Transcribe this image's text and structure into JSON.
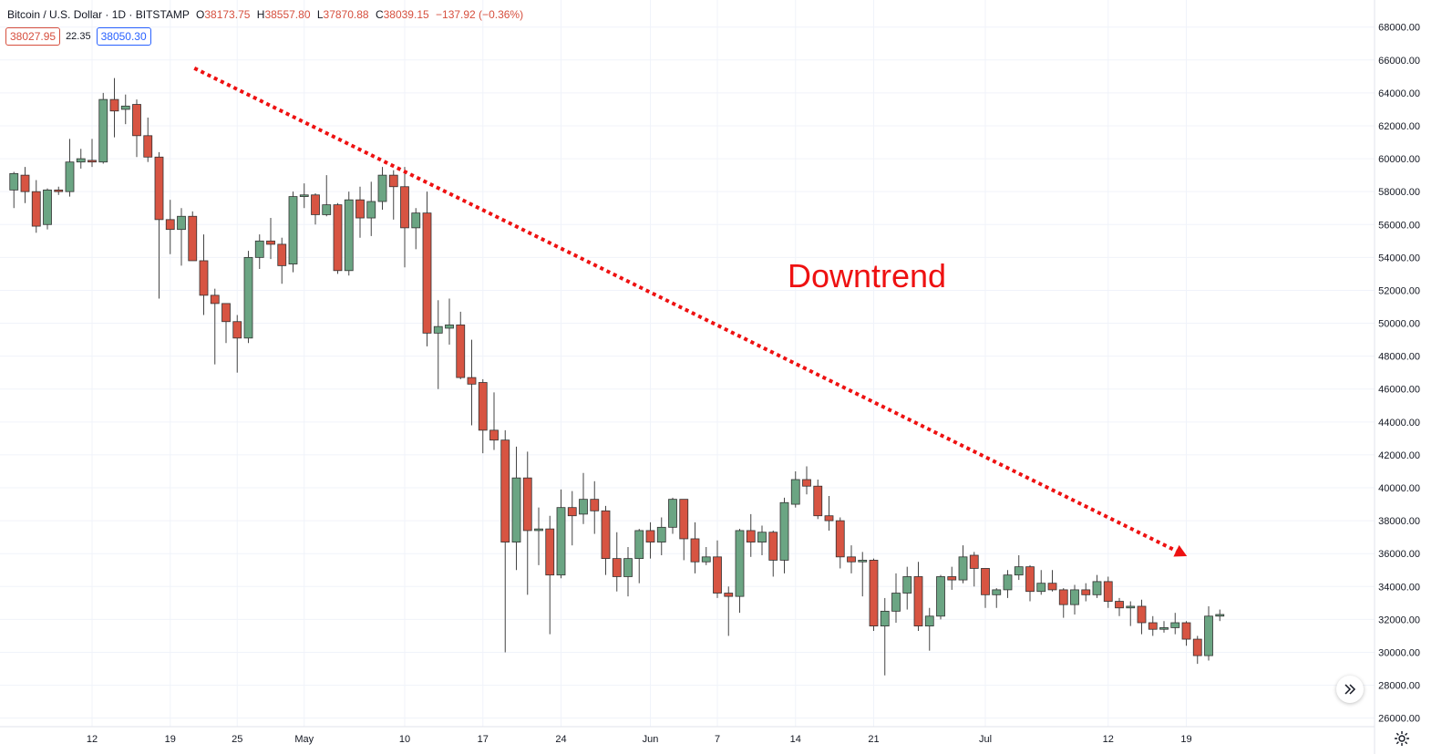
{
  "header": {
    "symbol": "Bitcoin / U.S. Dollar",
    "interval": "1D",
    "exchange": "BITSTAMP",
    "open_label": "O",
    "open": "38173.75",
    "high_label": "H",
    "high": "38557.80",
    "low_label": "L",
    "low": "37870.88",
    "close_label": "C",
    "close": "38039.15",
    "change": "−137.92 (−0.36%)",
    "bid": "38027.95",
    "spread": "22.35",
    "ask": "38050.30"
  },
  "colors": {
    "up": "#6ba583",
    "down": "#d75442",
    "grid": "#f0f3fa",
    "trendline": "#ee1111",
    "axis_text": "#131722"
  },
  "icons": [
    "double-chevron-right-icon",
    "gear-icon"
  ],
  "chart_data": {
    "type": "candlestick",
    "annotation": "Downtrend",
    "trendline": {
      "from": {
        "date": "2021-04-21",
        "price": 65500
      },
      "to": {
        "date": "2021-07-19",
        "price": 36000
      },
      "style": "dotted",
      "arrow": true
    },
    "y_ticks": [
      "26000.00",
      "28000.00",
      "30000.00",
      "32000.00",
      "34000.00",
      "36000.00",
      "38000.00",
      "40000.00",
      "42000.00",
      "44000.00",
      "46000.00",
      "48000.00",
      "50000.00",
      "52000.00",
      "54000.00",
      "56000.00",
      "58000.00",
      "60000.00",
      "62000.00",
      "64000.00",
      "66000.00",
      "68000.00"
    ],
    "ylim": [
      25000,
      69000
    ],
    "x_ticks": [
      {
        "label": "12",
        "date": "2021-04-12"
      },
      {
        "label": "19",
        "date": "2021-04-19"
      },
      {
        "label": "25",
        "date": "2021-04-25"
      },
      {
        "label": "May",
        "date": "2021-05-01"
      },
      {
        "label": "10",
        "date": "2021-05-10"
      },
      {
        "label": "17",
        "date": "2021-05-17"
      },
      {
        "label": "24",
        "date": "2021-05-24"
      },
      {
        "label": "Jun",
        "date": "2021-06-01"
      },
      {
        "label": "7",
        "date": "2021-06-07"
      },
      {
        "label": "14",
        "date": "2021-06-14"
      },
      {
        "label": "21",
        "date": "2021-06-21"
      },
      {
        "label": "Jul",
        "date": "2021-07-01"
      },
      {
        "label": "12",
        "date": "2021-07-12"
      },
      {
        "label": "19",
        "date": "2021-07-19"
      }
    ],
    "candles": [
      {
        "date": "2021-04-05",
        "o": 58100,
        "h": 59200,
        "l": 57000,
        "c": 59100
      },
      {
        "date": "2021-04-06",
        "o": 59000,
        "h": 59500,
        "l": 57300,
        "c": 58000
      },
      {
        "date": "2021-04-07",
        "o": 58000,
        "h": 58700,
        "l": 55500,
        "c": 55900
      },
      {
        "date": "2021-04-08",
        "o": 56000,
        "h": 58200,
        "l": 55700,
        "c": 58100
      },
      {
        "date": "2021-04-09",
        "o": 58100,
        "h": 58300,
        "l": 57800,
        "c": 58000
      },
      {
        "date": "2021-04-10",
        "o": 58000,
        "h": 61200,
        "l": 57700,
        "c": 59800
      },
      {
        "date": "2021-04-11",
        "o": 59800,
        "h": 60600,
        "l": 59400,
        "c": 60000
      },
      {
        "date": "2021-04-12",
        "o": 59900,
        "h": 61200,
        "l": 59500,
        "c": 59800
      },
      {
        "date": "2021-04-13",
        "o": 59800,
        "h": 64000,
        "l": 59700,
        "c": 63600
      },
      {
        "date": "2021-04-14",
        "o": 63600,
        "h": 64900,
        "l": 61300,
        "c": 62900
      },
      {
        "date": "2021-04-15",
        "o": 63000,
        "h": 63900,
        "l": 62100,
        "c": 63200
      },
      {
        "date": "2021-04-16",
        "o": 63300,
        "h": 63600,
        "l": 60100,
        "c": 61400
      },
      {
        "date": "2021-04-17",
        "o": 61400,
        "h": 62500,
        "l": 59800,
        "c": 60100
      },
      {
        "date": "2021-04-18",
        "o": 60100,
        "h": 60400,
        "l": 51500,
        "c": 56300
      },
      {
        "date": "2021-04-19",
        "o": 56300,
        "h": 57500,
        "l": 54200,
        "c": 55700
      },
      {
        "date": "2021-04-20",
        "o": 55700,
        "h": 57000,
        "l": 53500,
        "c": 56500
      },
      {
        "date": "2021-04-21",
        "o": 56500,
        "h": 56800,
        "l": 53800,
        "c": 53800
      },
      {
        "date": "2021-04-22",
        "o": 53800,
        "h": 55400,
        "l": 50500,
        "c": 51700
      },
      {
        "date": "2021-04-23",
        "o": 51700,
        "h": 52100,
        "l": 47500,
        "c": 51200
      },
      {
        "date": "2021-04-24",
        "o": 51200,
        "h": 51200,
        "l": 48800,
        "c": 50100
      },
      {
        "date": "2021-04-25",
        "o": 50100,
        "h": 50500,
        "l": 47000,
        "c": 49100
      },
      {
        "date": "2021-04-26",
        "o": 49100,
        "h": 54400,
        "l": 48800,
        "c": 54000
      },
      {
        "date": "2021-04-27",
        "o": 54000,
        "h": 55400,
        "l": 53300,
        "c": 55000
      },
      {
        "date": "2021-04-28",
        "o": 55000,
        "h": 56400,
        "l": 53900,
        "c": 54800
      },
      {
        "date": "2021-04-29",
        "o": 54800,
        "h": 55200,
        "l": 52400,
        "c": 53500
      },
      {
        "date": "2021-04-30",
        "o": 53600,
        "h": 58000,
        "l": 53100,
        "c": 57700
      },
      {
        "date": "2021-05-01",
        "o": 57700,
        "h": 58500,
        "l": 57000,
        "c": 57800
      },
      {
        "date": "2021-05-02",
        "o": 57800,
        "h": 57900,
        "l": 56000,
        "c": 56600
      },
      {
        "date": "2021-05-03",
        "o": 56600,
        "h": 59000,
        "l": 56500,
        "c": 57200
      },
      {
        "date": "2021-05-04",
        "o": 57200,
        "h": 57300,
        "l": 53000,
        "c": 53200
      },
      {
        "date": "2021-05-05",
        "o": 53200,
        "h": 58000,
        "l": 52900,
        "c": 57500
      },
      {
        "date": "2021-05-06",
        "o": 57500,
        "h": 58300,
        "l": 55200,
        "c": 56400
      },
      {
        "date": "2021-05-07",
        "o": 56400,
        "h": 58600,
        "l": 55300,
        "c": 57400
      },
      {
        "date": "2021-05-08",
        "o": 57400,
        "h": 59500,
        "l": 56900,
        "c": 59000
      },
      {
        "date": "2021-05-09",
        "o": 59000,
        "h": 59300,
        "l": 56300,
        "c": 58300
      },
      {
        "date": "2021-05-10",
        "o": 58300,
        "h": 59500,
        "l": 53400,
        "c": 55800
      },
      {
        "date": "2021-05-11",
        "o": 55800,
        "h": 57000,
        "l": 54500,
        "c": 56700
      },
      {
        "date": "2021-05-12",
        "o": 56700,
        "h": 58000,
        "l": 48600,
        "c": 49400
      },
      {
        "date": "2021-05-13",
        "o": 49400,
        "h": 51400,
        "l": 46000,
        "c": 49800
      },
      {
        "date": "2021-05-14",
        "o": 49700,
        "h": 51500,
        "l": 48700,
        "c": 49900
      },
      {
        "date": "2021-05-15",
        "o": 49900,
        "h": 50700,
        "l": 46600,
        "c": 46700
      },
      {
        "date": "2021-05-16",
        "o": 46700,
        "h": 49000,
        "l": 43800,
        "c": 46300
      },
      {
        "date": "2021-05-17",
        "o": 46400,
        "h": 46600,
        "l": 42100,
        "c": 43500
      },
      {
        "date": "2021-05-18",
        "o": 43500,
        "h": 45800,
        "l": 42300,
        "c": 42900
      },
      {
        "date": "2021-05-19",
        "o": 42900,
        "h": 43500,
        "l": 30000,
        "c": 36700
      },
      {
        "date": "2021-05-20",
        "o": 36700,
        "h": 42500,
        "l": 35000,
        "c": 40600
      },
      {
        "date": "2021-05-21",
        "o": 40600,
        "h": 42200,
        "l": 33500,
        "c": 37400
      },
      {
        "date": "2021-05-22",
        "o": 37400,
        "h": 38800,
        "l": 35300,
        "c": 37500
      },
      {
        "date": "2021-05-23",
        "o": 37500,
        "h": 38300,
        "l": 31100,
        "c": 34700
      },
      {
        "date": "2021-05-24",
        "o": 34700,
        "h": 39900,
        "l": 34500,
        "c": 38800
      },
      {
        "date": "2021-05-25",
        "o": 38800,
        "h": 39800,
        "l": 36500,
        "c": 38300
      },
      {
        "date": "2021-05-26",
        "o": 38400,
        "h": 40900,
        "l": 37800,
        "c": 39300
      },
      {
        "date": "2021-05-27",
        "o": 39300,
        "h": 40400,
        "l": 37200,
        "c": 38600
      },
      {
        "date": "2021-05-28",
        "o": 38600,
        "h": 38900,
        "l": 34700,
        "c": 35700
      },
      {
        "date": "2021-05-29",
        "o": 35700,
        "h": 37300,
        "l": 33700,
        "c": 34600
      },
      {
        "date": "2021-05-30",
        "o": 34600,
        "h": 36400,
        "l": 33400,
        "c": 35700
      },
      {
        "date": "2021-05-31",
        "o": 35700,
        "h": 37500,
        "l": 34200,
        "c": 37400
      },
      {
        "date": "2021-06-01",
        "o": 37400,
        "h": 37900,
        "l": 35700,
        "c": 36700
      },
      {
        "date": "2021-06-02",
        "o": 36700,
        "h": 38200,
        "l": 35900,
        "c": 37600
      },
      {
        "date": "2021-06-03",
        "o": 37600,
        "h": 39400,
        "l": 37200,
        "c": 39300
      },
      {
        "date": "2021-06-04",
        "o": 39300,
        "h": 39300,
        "l": 35600,
        "c": 36900
      },
      {
        "date": "2021-06-05",
        "o": 36900,
        "h": 37900,
        "l": 34800,
        "c": 35500
      },
      {
        "date": "2021-06-06",
        "o": 35500,
        "h": 36400,
        "l": 35300,
        "c": 35800
      },
      {
        "date": "2021-06-07",
        "o": 35800,
        "h": 36800,
        "l": 33300,
        "c": 33600
      },
      {
        "date": "2021-06-08",
        "o": 33600,
        "h": 34000,
        "l": 31000,
        "c": 33400
      },
      {
        "date": "2021-06-09",
        "o": 33400,
        "h": 37500,
        "l": 32400,
        "c": 37400
      },
      {
        "date": "2021-06-10",
        "o": 37400,
        "h": 38400,
        "l": 35800,
        "c": 36700
      },
      {
        "date": "2021-06-11",
        "o": 36700,
        "h": 37700,
        "l": 35900,
        "c": 37300
      },
      {
        "date": "2021-06-12",
        "o": 37300,
        "h": 37400,
        "l": 34600,
        "c": 35600
      },
      {
        "date": "2021-06-13",
        "o": 35600,
        "h": 39400,
        "l": 34800,
        "c": 39100
      },
      {
        "date": "2021-06-14",
        "o": 39000,
        "h": 41000,
        "l": 38800,
        "c": 40500
      },
      {
        "date": "2021-06-15",
        "o": 40500,
        "h": 41300,
        "l": 39600,
        "c": 40100
      },
      {
        "date": "2021-06-16",
        "o": 40100,
        "h": 40500,
        "l": 38100,
        "c": 38300
      },
      {
        "date": "2021-06-17",
        "o": 38300,
        "h": 39500,
        "l": 37400,
        "c": 38000
      },
      {
        "date": "2021-06-18",
        "o": 38000,
        "h": 38200,
        "l": 35100,
        "c": 35800
      },
      {
        "date": "2021-06-19",
        "o": 35800,
        "h": 36500,
        "l": 34800,
        "c": 35500
      },
      {
        "date": "2021-06-20",
        "o": 35500,
        "h": 36100,
        "l": 33400,
        "c": 35600
      },
      {
        "date": "2021-06-21",
        "o": 35600,
        "h": 35700,
        "l": 31300,
        "c": 31600
      },
      {
        "date": "2021-06-22",
        "o": 31600,
        "h": 33300,
        "l": 28600,
        "c": 32500
      },
      {
        "date": "2021-06-23",
        "o": 32500,
        "h": 34800,
        "l": 31800,
        "c": 33600
      },
      {
        "date": "2021-06-24",
        "o": 33600,
        "h": 35200,
        "l": 32600,
        "c": 34600
      },
      {
        "date": "2021-06-25",
        "o": 34600,
        "h": 35500,
        "l": 31300,
        "c": 31600
      },
      {
        "date": "2021-06-26",
        "o": 31600,
        "h": 32700,
        "l": 30100,
        "c": 32200
      },
      {
        "date": "2021-06-27",
        "o": 32200,
        "h": 34700,
        "l": 32000,
        "c": 34600
      },
      {
        "date": "2021-06-28",
        "o": 34600,
        "h": 35200,
        "l": 33800,
        "c": 34400
      },
      {
        "date": "2021-06-29",
        "o": 34400,
        "h": 36500,
        "l": 34200,
        "c": 35800
      },
      {
        "date": "2021-06-30",
        "o": 35900,
        "h": 36100,
        "l": 34000,
        "c": 35100
      },
      {
        "date": "2021-07-01",
        "o": 35100,
        "h": 35100,
        "l": 32700,
        "c": 33500
      },
      {
        "date": "2021-07-02",
        "o": 33500,
        "h": 33900,
        "l": 32700,
        "c": 33800
      },
      {
        "date": "2021-07-03",
        "o": 33800,
        "h": 35000,
        "l": 33300,
        "c": 34700
      },
      {
        "date": "2021-07-04",
        "o": 34700,
        "h": 35900,
        "l": 34400,
        "c": 35200
      },
      {
        "date": "2021-07-05",
        "o": 35200,
        "h": 35300,
        "l": 33100,
        "c": 33700
      },
      {
        "date": "2021-07-06",
        "o": 33700,
        "h": 35000,
        "l": 33500,
        "c": 34200
      },
      {
        "date": "2021-07-07",
        "o": 34200,
        "h": 35000,
        "l": 33700,
        "c": 33800
      },
      {
        "date": "2021-07-08",
        "o": 33800,
        "h": 33900,
        "l": 32100,
        "c": 32900
      },
      {
        "date": "2021-07-09",
        "o": 32900,
        "h": 34100,
        "l": 32300,
        "c": 33800
      },
      {
        "date": "2021-07-10",
        "o": 33800,
        "h": 34200,
        "l": 33100,
        "c": 33500
      },
      {
        "date": "2021-07-11",
        "o": 33500,
        "h": 34700,
        "l": 33300,
        "c": 34300
      },
      {
        "date": "2021-07-12",
        "o": 34300,
        "h": 34600,
        "l": 32700,
        "c": 33100
      },
      {
        "date": "2021-07-13",
        "o": 33100,
        "h": 33300,
        "l": 32200,
        "c": 32700
      },
      {
        "date": "2021-07-14",
        "o": 32700,
        "h": 33100,
        "l": 31600,
        "c": 32800
      },
      {
        "date": "2021-07-15",
        "o": 32800,
        "h": 33200,
        "l": 31100,
        "c": 31800
      },
      {
        "date": "2021-07-16",
        "o": 31800,
        "h": 32200,
        "l": 31000,
        "c": 31400
      },
      {
        "date": "2021-07-17",
        "o": 31400,
        "h": 31900,
        "l": 31200,
        "c": 31500
      },
      {
        "date": "2021-07-18",
        "o": 31500,
        "h": 32400,
        "l": 31100,
        "c": 31800
      },
      {
        "date": "2021-07-19",
        "o": 31800,
        "h": 31900,
        "l": 30400,
        "c": 30800
      },
      {
        "date": "2021-07-20",
        "o": 30800,
        "h": 31000,
        "l": 29300,
        "c": 29800
      },
      {
        "date": "2021-07-21",
        "o": 29800,
        "h": 32800,
        "l": 29500,
        "c": 32200
      },
      {
        "date": "2021-07-22",
        "o": 32200,
        "h": 32600,
        "l": 31900,
        "c": 32300
      }
    ]
  }
}
